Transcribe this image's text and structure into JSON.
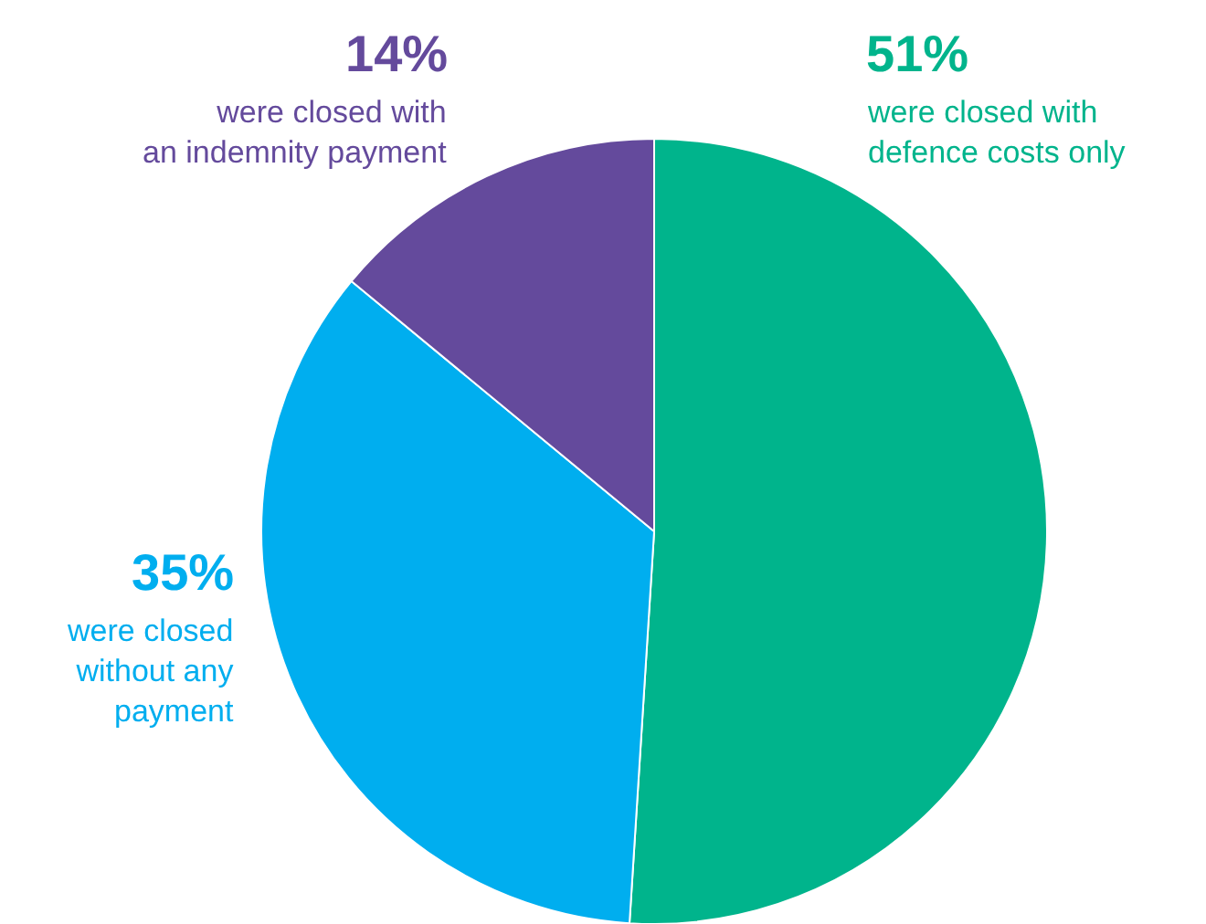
{
  "chart_data": {
    "type": "pie",
    "categories": [
      "were closed with\ndefence costs only",
      "were closed\nwithout any\npayment",
      "were closed with\nan indemnity payment"
    ],
    "values": [
      51,
      35,
      14
    ],
    "value_labels": [
      "51%",
      "35%",
      "14%"
    ],
    "colors": [
      "#00b48c",
      "#00aeef",
      "#644a9c"
    ],
    "legend": false
  }
}
